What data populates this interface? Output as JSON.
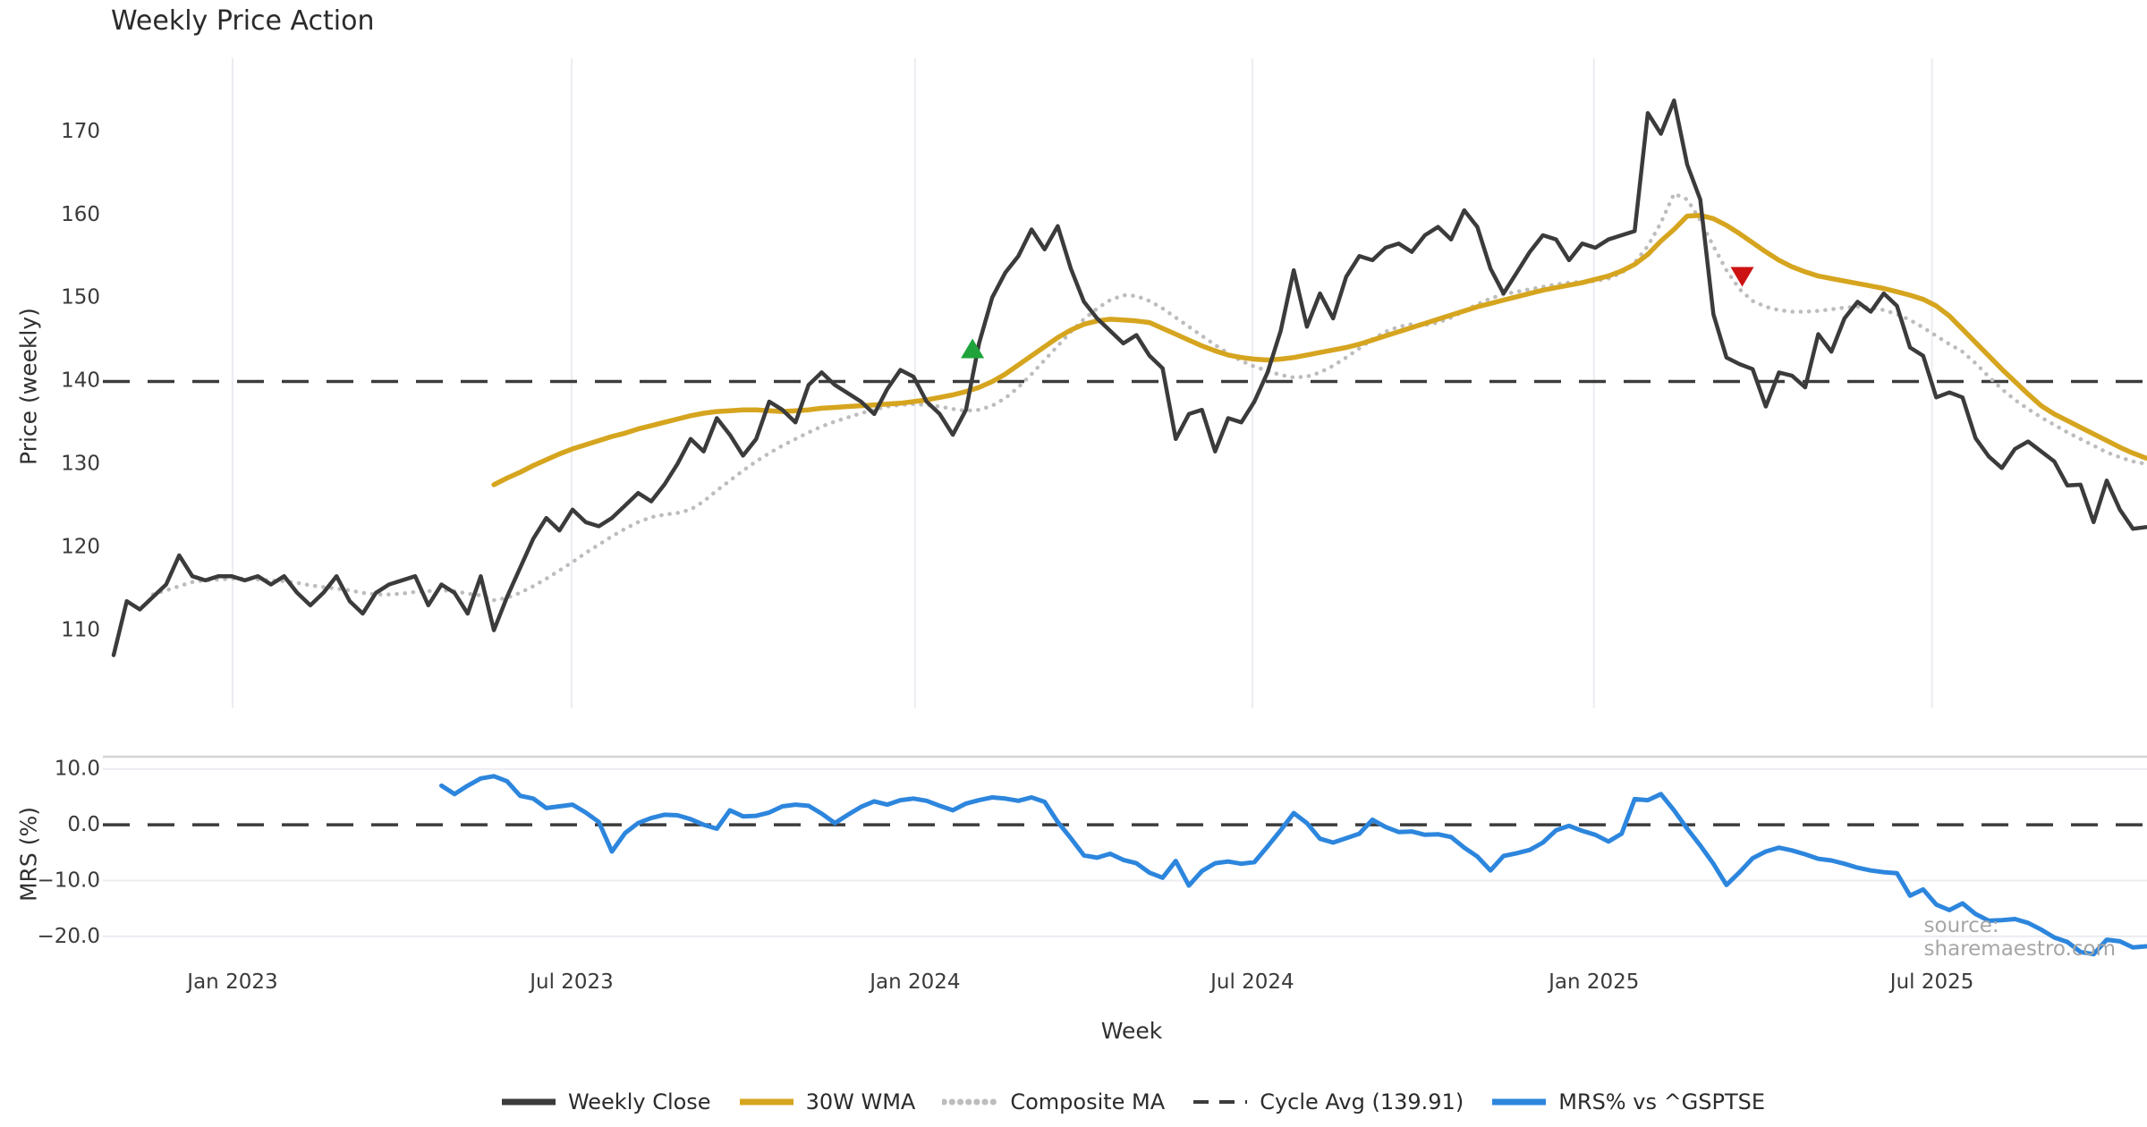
{
  "title": "Weekly Price Action",
  "source_note": "source: sharemaestro.com",
  "axes": {
    "price_axis_label": "Price (weekly)",
    "mrs_axis_label": "MRS (%)",
    "x_axis_label": "Week"
  },
  "legend": [
    {
      "label": "Weekly Close",
      "color": "#3b3b3b",
      "style": "solid"
    },
    {
      "label": "30W WMA",
      "color": "#d6a51f",
      "style": "solid"
    },
    {
      "label": "Composite MA",
      "color": "#bdbdbd",
      "style": "dotted"
    },
    {
      "label": "Cycle Avg (139.91)",
      "color": "#3c3c3c",
      "style": "dashed"
    },
    {
      "label": "MRS% vs ^GSPTSE",
      "color": "#2d86dd",
      "style": "solid"
    }
  ],
  "chart_data": {
    "type": "line",
    "title": "Weekly Price Action",
    "x_axis": {
      "label": "Week",
      "unit": "week-index",
      "range": [
        -0.82,
        155.07
      ],
      "ticks": [
        {
          "pos": 9.07,
          "label": "Jan 2023"
        },
        {
          "pos": 34.93,
          "label": "Jul 2023"
        },
        {
          "pos": 61.12,
          "label": "Jan 2024"
        },
        {
          "pos": 86.84,
          "label": "Jul 2024"
        },
        {
          "pos": 112.89,
          "label": "Jan 2025"
        },
        {
          "pos": 138.67,
          "label": "Jul 2025"
        }
      ]
    },
    "top_panel": {
      "ylabel": "Price (weekly)",
      "ylim": [
        100.6,
        178.8
      ],
      "yticks": [
        {
          "value": 110,
          "label": "110"
        },
        {
          "value": 120,
          "label": "120"
        },
        {
          "value": 130,
          "label": "130"
        },
        {
          "value": 140,
          "label": "140"
        },
        {
          "value": 150,
          "label": "150"
        },
        {
          "value": 160,
          "label": "160"
        },
        {
          "value": 170,
          "label": "170"
        }
      ],
      "cycle_avg": 139.91,
      "grid": "vertical",
      "series": [
        {
          "name": "Weekly Close",
          "color": "#3b3b3b",
          "style": "solid",
          "width": 4.5,
          "start_week": 0,
          "values": [
            107.0,
            113.5,
            112.5,
            114.0,
            115.5,
            119.0,
            116.5,
            116.0,
            116.5,
            116.5,
            116.0,
            116.5,
            115.5,
            116.5,
            114.5,
            113.0,
            114.5,
            116.5,
            113.5,
            112.0,
            114.5,
            115.5,
            116.0,
            116.5,
            113.0,
            115.5,
            114.5,
            112.0,
            116.5,
            110.0,
            114.0,
            117.5,
            121.0,
            123.5,
            122.0,
            124.5,
            123.0,
            122.5,
            123.5,
            125.0,
            126.5,
            125.5,
            127.5,
            130.0,
            133.0,
            131.5,
            135.5,
            133.5,
            131.0,
            133.0,
            137.5,
            136.5,
            135.0,
            139.5,
            141.0,
            139.5,
            138.5,
            137.5,
            136.0,
            139.0,
            141.3,
            140.5,
            137.5,
            136.0,
            133.5,
            136.5,
            144.5,
            150.0,
            153.0,
            155.0,
            158.2,
            155.8,
            158.6,
            153.5,
            149.5,
            147.5,
            146.0,
            144.5,
            145.5,
            143.0,
            141.5,
            133.0,
            136.0,
            136.5,
            131.5,
            135.5,
            135.0,
            137.5,
            141.0,
            146.0,
            153.3,
            146.5,
            150.5,
            147.5,
            152.5,
            155.0,
            154.5,
            156.0,
            156.5,
            155.5,
            157.5,
            158.5,
            157.0,
            160.5,
            158.5,
            153.5,
            150.5,
            153.0,
            155.5,
            157.5,
            157.0,
            154.5,
            156.5,
            156.0,
            157.0,
            157.5,
            158.0,
            172.2,
            169.7,
            173.7,
            166.0,
            161.8,
            148.0,
            142.8,
            142.0,
            141.4,
            136.9,
            141.0,
            140.6,
            139.2,
            145.6,
            143.5,
            147.5,
            149.5,
            148.3,
            150.5,
            149.0,
            144.0,
            143.0,
            138.0,
            138.6,
            138.0,
            133.1,
            130.9,
            129.5,
            131.8,
            132.7,
            131.5,
            130.3,
            127.4,
            127.5,
            123.0,
            128.0,
            124.5,
            122.2,
            122.4
          ]
        },
        {
          "name": "30W WMA",
          "color": "#d6a51f",
          "style": "solid",
          "width": 5.5,
          "start_week": 29,
          "values": [
            127.5,
            128.3,
            129.0,
            129.8,
            130.5,
            131.2,
            131.8,
            132.3,
            132.8,
            133.3,
            133.7,
            134.2,
            134.6,
            135.0,
            135.4,
            135.8,
            136.1,
            136.3,
            136.4,
            136.5,
            136.5,
            136.4,
            136.3,
            136.4,
            136.5,
            136.7,
            136.8,
            136.9,
            137.0,
            137.1,
            137.2,
            137.3,
            137.5,
            137.7,
            138.0,
            138.3,
            138.7,
            139.2,
            139.9,
            140.8,
            141.9,
            143.0,
            144.1,
            145.2,
            146.1,
            146.8,
            147.2,
            147.4,
            147.3,
            147.2,
            147.0,
            146.3,
            145.6,
            144.9,
            144.2,
            143.6,
            143.1,
            142.8,
            142.6,
            142.5,
            142.6,
            142.8,
            143.1,
            143.4,
            143.7,
            144.0,
            144.4,
            144.9,
            145.4,
            145.9,
            146.4,
            146.9,
            147.4,
            147.9,
            148.4,
            148.9,
            149.3,
            149.7,
            150.1,
            150.5,
            150.9,
            151.2,
            151.5,
            151.8,
            152.2,
            152.6,
            153.2,
            154.0,
            155.2,
            156.8,
            158.2,
            159.8,
            159.9,
            159.5,
            158.7,
            157.7,
            156.6,
            155.5,
            154.5,
            153.7,
            153.1,
            152.6,
            152.3,
            152.0,
            151.7,
            151.4,
            151.1,
            150.7,
            150.3,
            149.8,
            149.0,
            147.8,
            146.2,
            144.6,
            143.0,
            141.4,
            139.9,
            138.4,
            137.0,
            136.0,
            135.2,
            134.4,
            133.6,
            132.8,
            132.0,
            131.3,
            130.7
          ]
        },
        {
          "name": "Composite MA",
          "color": "#bdbdbd",
          "style": "dotted",
          "width": 4.5,
          "start_week": 3,
          "values": [
            114.3,
            114.8,
            115.3,
            115.8,
            116.0,
            116.1,
            116.2,
            116.2,
            116.1,
            116.0,
            115.9,
            115.7,
            115.4,
            115.2,
            115.0,
            114.8,
            114.5,
            114.3,
            114.3,
            114.4,
            114.6,
            114.7,
            114.8,
            114.7,
            114.4,
            114.2,
            113.6,
            113.9,
            114.5,
            115.3,
            116.2,
            117.2,
            118.2,
            119.3,
            120.3,
            121.3,
            122.2,
            123.0,
            123.6,
            123.9,
            124.1,
            124.5,
            125.5,
            126.8,
            128.0,
            129.2,
            130.3,
            131.3,
            132.2,
            133.0,
            133.8,
            134.5,
            135.1,
            135.6,
            136.1,
            136.5,
            136.9,
            137.1,
            137.2,
            137.1,
            136.9,
            136.6,
            136.4,
            136.5,
            137.0,
            137.9,
            139.2,
            140.8,
            142.5,
            144.2,
            145.9,
            147.4,
            148.7,
            149.7,
            150.3,
            150.2,
            149.6,
            148.7,
            147.6,
            146.5,
            145.4,
            144.3,
            143.3,
            142.4,
            141.7,
            141.2,
            140.7,
            140.4,
            140.5,
            141.0,
            141.8,
            142.8,
            143.9,
            145.0,
            145.9,
            146.5,
            146.8,
            146.7,
            147.0,
            147.6,
            148.4,
            149.2,
            149.9,
            150.4,
            150.7,
            151.0,
            151.3,
            151.6,
            151.8,
            151.9,
            152.0,
            152.3,
            153.0,
            154.2,
            156.2,
            159.0,
            162.5,
            161.8,
            159.3,
            156.2,
            153.3,
            151.0,
            149.6,
            148.9,
            148.5,
            148.3,
            148.3,
            148.4,
            148.6,
            148.8,
            148.9,
            148.8,
            148.5,
            148.0,
            147.3,
            146.4,
            145.4,
            144.4,
            143.5,
            142.1,
            140.5,
            139.0,
            137.7,
            136.6,
            135.6,
            134.7,
            133.8,
            133.0,
            132.2,
            131.4,
            130.8,
            130.3,
            130.0
          ]
        }
      ],
      "signals": [
        {
          "type": "buy",
          "shape": "triangle-up",
          "color": "#1ea43a",
          "week": 65.5,
          "price": 143.9
        },
        {
          "type": "sell",
          "shape": "triangle-down",
          "color": "#cc1212",
          "week": 124.2,
          "price": 152.5
        }
      ]
    },
    "bottom_panel": {
      "ylabel": "MRS (%)",
      "ylim": [
        -25.0,
        12.2
      ],
      "yticks": [
        {
          "value": 10,
          "label": "10.0"
        },
        {
          "value": 0,
          "label": "0.0"
        },
        {
          "value": -10,
          "label": "−10.0"
        },
        {
          "value": -20,
          "label": "−20.0"
        }
      ],
      "zero_line_dashed": true,
      "grid": "horizontal",
      "series": [
        {
          "name": "MRS% vs ^GSPTSE",
          "color": "#2d86dd",
          "style": "solid",
          "width": 5,
          "start_week": 25,
          "values": [
            7.0,
            5.5,
            7.0,
            8.3,
            8.7,
            7.8,
            5.2,
            4.7,
            3.0,
            3.3,
            3.6,
            2.2,
            0.5,
            -4.8,
            -1.5,
            0.3,
            1.2,
            1.8,
            1.7,
            1.0,
            0.0,
            -0.7,
            2.6,
            1.5,
            1.6,
            2.2,
            3.3,
            3.6,
            3.4,
            2.0,
            0.3,
            1.8,
            3.2,
            4.2,
            3.6,
            4.4,
            4.7,
            4.3,
            3.4,
            2.6,
            3.8,
            4.4,
            4.9,
            4.7,
            4.3,
            4.9,
            4.1,
            0.5,
            -2.4,
            -5.5,
            -5.9,
            -5.2,
            -6.3,
            -6.9,
            -8.6,
            -9.5,
            -6.5,
            -10.9,
            -8.3,
            -6.9,
            -6.6,
            -7.0,
            -6.7,
            -3.9,
            -1.0,
            2.1,
            0.3,
            -2.5,
            -3.2,
            -2.4,
            -1.6,
            0.9,
            -0.4,
            -1.3,
            -1.2,
            -1.8,
            -1.7,
            -2.2,
            -4.1,
            -5.7,
            -8.2,
            -5.6,
            -5.1,
            -4.5,
            -3.2,
            -1.0,
            -0.2,
            -1.1,
            -1.8,
            -3.0,
            -1.6,
            4.6,
            4.4,
            5.5,
            2.6,
            -0.7,
            -3.7,
            -7.0,
            -10.8,
            -8.5,
            -6.0,
            -4.8,
            -4.1,
            -4.6,
            -5.3,
            -6.1,
            -6.4,
            -7.0,
            -7.7,
            -8.2,
            -8.5,
            -8.7,
            -12.7,
            -11.6,
            -14.3,
            -15.3,
            -14.1,
            -16.0,
            -17.2,
            -17.1,
            -16.9,
            -17.6,
            -18.8,
            -20.2,
            -21.0,
            -22.8,
            -23.2,
            -20.6,
            -20.9,
            -22.0,
            -21.8
          ]
        }
      ]
    },
    "colors": {
      "grid": "#ececf2",
      "panel_divider": "#d4d4d8",
      "tick_text": "#3a3a3a",
      "dashed_reference": "#3c3c3c"
    }
  }
}
